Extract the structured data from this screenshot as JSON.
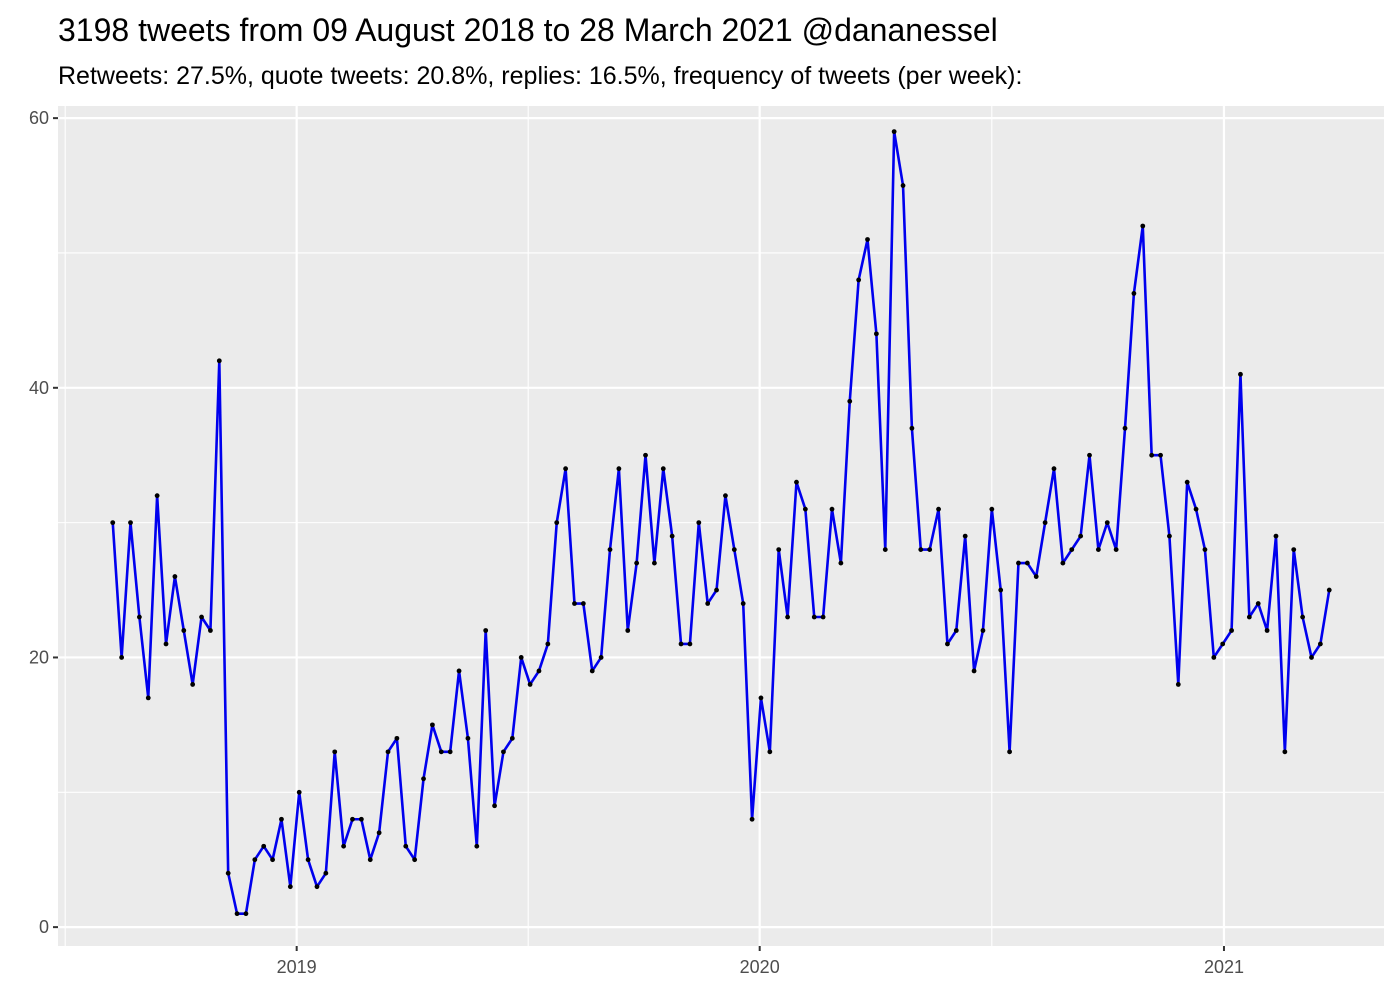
{
  "chart_data": {
    "type": "line",
    "title": "3198 tweets from 09 August 2018 to 28 March 2021 @dananessel",
    "subtitle": "Retweets: 27.5%, quote tweets: 20.8%, replies: 16.5%, frequency of tweets (per week):",
    "xlabel": "",
    "ylabel": "",
    "start_date": "2018-08-09",
    "interval_days": 7,
    "x_ticks": [
      {
        "label": "2019",
        "date": "2019-01-01"
      },
      {
        "label": "2020",
        "date": "2020-01-01"
      },
      {
        "label": "2021",
        "date": "2021-01-01"
      }
    ],
    "y_ticks": [
      0,
      20,
      40,
      60
    ],
    "ylim": [
      -1.4,
      60.9
    ],
    "grid": true,
    "legend": "none",
    "colors": {
      "line": "#0000ee",
      "point": "#000000",
      "panel": "#ebebeb",
      "grid": "#ffffff",
      "tick_text": "#4d4d4d"
    },
    "series": [
      {
        "values": [
          30,
          20,
          30,
          23,
          17,
          32,
          21,
          26,
          22,
          18,
          23,
          22,
          42,
          4,
          1,
          1,
          5,
          6,
          5,
          8,
          3,
          10,
          5,
          3,
          4,
          13,
          6,
          8,
          8,
          5,
          7,
          13,
          14,
          6,
          5,
          11,
          15,
          13,
          13,
          19,
          14,
          6,
          22,
          9,
          13,
          14,
          20,
          18,
          19,
          21,
          30,
          34,
          24,
          24,
          19,
          20,
          28,
          34,
          22,
          27,
          35,
          27,
          34,
          29,
          21,
          21,
          30,
          24,
          25,
          32,
          28,
          24,
          8,
          17,
          13,
          28,
          23,
          33,
          31,
          23,
          23,
          31,
          27,
          39,
          48,
          51,
          44,
          28,
          59,
          55,
          37,
          28,
          28,
          31,
          21,
          22,
          29,
          19,
          22,
          31,
          25,
          13,
          27,
          27,
          26,
          30,
          34,
          27,
          28,
          29,
          35,
          28,
          30,
          28,
          37,
          47,
          52,
          35,
          35,
          29,
          18,
          33,
          31,
          28,
          20,
          21,
          22,
          41,
          23,
          24,
          22,
          29,
          13,
          28,
          23,
          20,
          21,
          25
        ]
      }
    ]
  }
}
